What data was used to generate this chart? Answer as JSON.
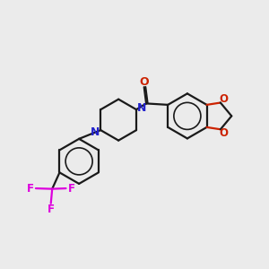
{
  "bg_color": "#ebebeb",
  "bond_color": "#1a1a1a",
  "nitrogen_color": "#2222cc",
  "oxygen_color": "#cc2200",
  "fluorine_color": "#dd00dd",
  "line_width": 1.6,
  "dbo": 0.055,
  "xlim": [
    0,
    10
  ],
  "ylim": [
    0,
    10
  ]
}
